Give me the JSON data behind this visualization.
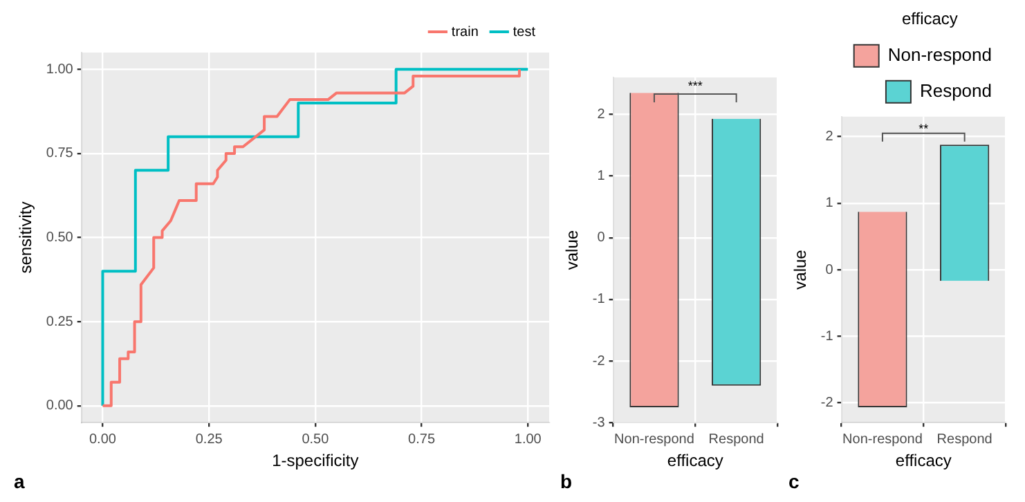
{
  "chart_data": [
    {
      "type": "line",
      "xlabel": "1-specificity",
      "ylabel": "sensitivity",
      "xlim": [
        -0.05,
        1.05
      ],
      "ylim": [
        -0.05,
        1.05
      ],
      "xticks": [
        {
          "value": 0,
          "label": "0.00"
        },
        {
          "value": 0.25,
          "label": "0.25"
        },
        {
          "value": 0.5,
          "label": "0.50"
        },
        {
          "value": 0.75,
          "label": "0.75"
        },
        {
          "value": 1,
          "label": "1.00"
        }
      ],
      "yticks": [
        {
          "value": 0,
          "label": "0.00"
        },
        {
          "value": 0.25,
          "label": "0.25"
        },
        {
          "value": 0.5,
          "label": "0.50"
        },
        {
          "value": 0.75,
          "label": "0.75"
        },
        {
          "value": 1,
          "label": "1.00"
        }
      ],
      "grid": true,
      "legend": "top right",
      "marker": "none",
      "annotations": [
        "a"
      ],
      "series": [
        {
          "name": "train",
          "color": "#f8766d",
          "x": [
            0,
            0.02,
            0.02,
            0.04,
            0.04,
            0.06,
            0.06,
            0.075,
            0.075,
            0.09,
            0.09,
            0.12,
            0.12,
            0.14,
            0.14,
            0.16,
            0.18,
            0.18,
            0.22,
            0.22,
            0.26,
            0.27,
            0.27,
            0.29,
            0.29,
            0.31,
            0.31,
            0.33,
            0.38,
            0.38,
            0.41,
            0.44,
            0.53,
            0.55,
            0.71,
            0.73,
            0.73,
            0.98,
            0.98
          ],
          "values": [
            0,
            0,
            0.07,
            0.07,
            0.14,
            0.14,
            0.16,
            0.16,
            0.25,
            0.25,
            0.36,
            0.41,
            0.5,
            0.5,
            0.52,
            0.55,
            0.61,
            0.61,
            0.61,
            0.66,
            0.66,
            0.68,
            0.7,
            0.73,
            0.75,
            0.75,
            0.77,
            0.77,
            0.82,
            0.86,
            0.86,
            0.91,
            0.91,
            0.93,
            0.93,
            0.95,
            0.98,
            0.98,
            1
          ]
        },
        {
          "name": "test",
          "color": "#00bfc4",
          "x": [
            0,
            0,
            0.077,
            0.077,
            0.154,
            0.154,
            0.46,
            0.46,
            0.69,
            0.69,
            1
          ],
          "values": [
            0,
            0.4,
            0.4,
            0.7,
            0.7,
            0.8,
            0.8,
            0.9,
            0.9,
            1,
            1
          ]
        }
      ]
    },
    {
      "type": "bar",
      "categories": [
        "Non-respond",
        "Respond"
      ],
      "xlabel": "efficacy",
      "ylabel": "value",
      "ylim": [
        -3,
        2.6
      ],
      "yticks": [
        -3,
        -2,
        -1,
        0,
        1,
        2
      ],
      "grid": true,
      "legend": false,
      "annotations": [
        "b",
        "***"
      ],
      "series": [
        {
          "color": "#f4a39d",
          "base": [
            -2.75,
            null
          ],
          "values": [
            5.1,
            null
          ]
        },
        {
          "color": "#5bd3d3",
          "base": [
            null,
            -2.4
          ],
          "values": [
            null,
            4.33
          ]
        }
      ]
    },
    {
      "type": "bar",
      "categories": [
        "Non-respond",
        "Respond"
      ],
      "xlabel": "efficacy",
      "ylabel": "value",
      "ylim": [
        -2.3,
        2.3
      ],
      "yticks": [
        -2,
        -1,
        0,
        1,
        2
      ],
      "grid": true,
      "legend": "top right",
      "legend_title": "efficacy",
      "annotations": [
        "c",
        "**"
      ],
      "series": [
        {
          "name": "Non-respond",
          "color": "#f4a39d",
          "base": [
            -2.07,
            null
          ],
          "values": [
            2.94,
            null
          ]
        },
        {
          "name": "Respond",
          "color": "#5bd3d3",
          "base": [
            null,
            -0.17
          ],
          "values": [
            null,
            2.05
          ]
        }
      ]
    }
  ]
}
